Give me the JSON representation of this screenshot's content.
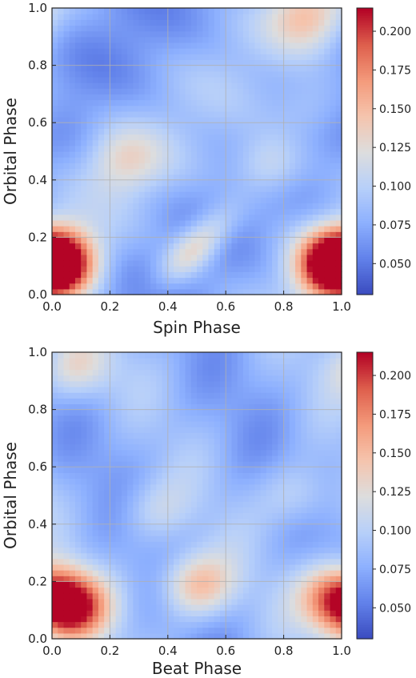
{
  "chart_data": [
    {
      "type": "heatmap",
      "title": "",
      "xlabel": "Spin Phase",
      "ylabel": "Orbital Phase",
      "xlim": [
        0.0,
        1.0
      ],
      "ylim": [
        0.0,
        1.0
      ],
      "grid": true,
      "xticks": [
        "0.0",
        "0.2",
        "0.4",
        "0.6",
        "0.8",
        "1.0"
      ],
      "yticks": [
        "0.0",
        "0.2",
        "0.4",
        "0.6",
        "0.8",
        "1.0"
      ],
      "colorbar": {
        "vmin": 0.03,
        "vmax": 0.215,
        "colormap": "coolwarm",
        "ticks": [
          "0.050",
          "0.075",
          "0.100",
          "0.125",
          "0.150",
          "0.175",
          "0.200"
        ]
      },
      "features": [
        {
          "x": 0.02,
          "y": 0.12,
          "value": 0.2
        },
        {
          "x": 0.98,
          "y": 0.1,
          "value": 0.21
        },
        {
          "x": 0.5,
          "y": 0.17,
          "value": 0.15
        },
        {
          "x": 0.25,
          "y": 0.47,
          "value": 0.125
        },
        {
          "x": 0.75,
          "y": 0.45,
          "value": 0.13
        },
        {
          "x": 0.88,
          "y": 0.97,
          "value": 0.14
        },
        {
          "x": 0.9,
          "y": 0.65,
          "value": 0.11
        }
      ]
    },
    {
      "type": "heatmap",
      "title": "",
      "xlabel": "Beat Phase",
      "ylabel": "Orbital Phase",
      "xlim": [
        0.0,
        1.0
      ],
      "ylim": [
        0.0,
        1.0
      ],
      "grid": true,
      "xticks": [
        "0.0",
        "0.2",
        "0.4",
        "0.6",
        "0.8",
        "1.0"
      ],
      "yticks": [
        "0.0",
        "0.2",
        "0.4",
        "0.6",
        "0.8",
        "1.0"
      ],
      "colorbar": {
        "vmin": 0.03,
        "vmax": 0.215,
        "colormap": "coolwarm",
        "ticks": [
          "0.050",
          "0.075",
          "0.100",
          "0.125",
          "0.150",
          "0.175",
          "0.200"
        ]
      },
      "features": [
        {
          "x": 0.06,
          "y": 0.11,
          "value": 0.21
        },
        {
          "x": 0.98,
          "y": 0.15,
          "value": 0.165
        },
        {
          "x": 0.5,
          "y": 0.19,
          "value": 0.155
        },
        {
          "x": 0.08,
          "y": 0.95,
          "value": 0.13
        },
        {
          "x": 0.35,
          "y": 0.45,
          "value": 0.11
        },
        {
          "x": 0.85,
          "y": 0.5,
          "value": 0.115
        }
      ]
    }
  ]
}
